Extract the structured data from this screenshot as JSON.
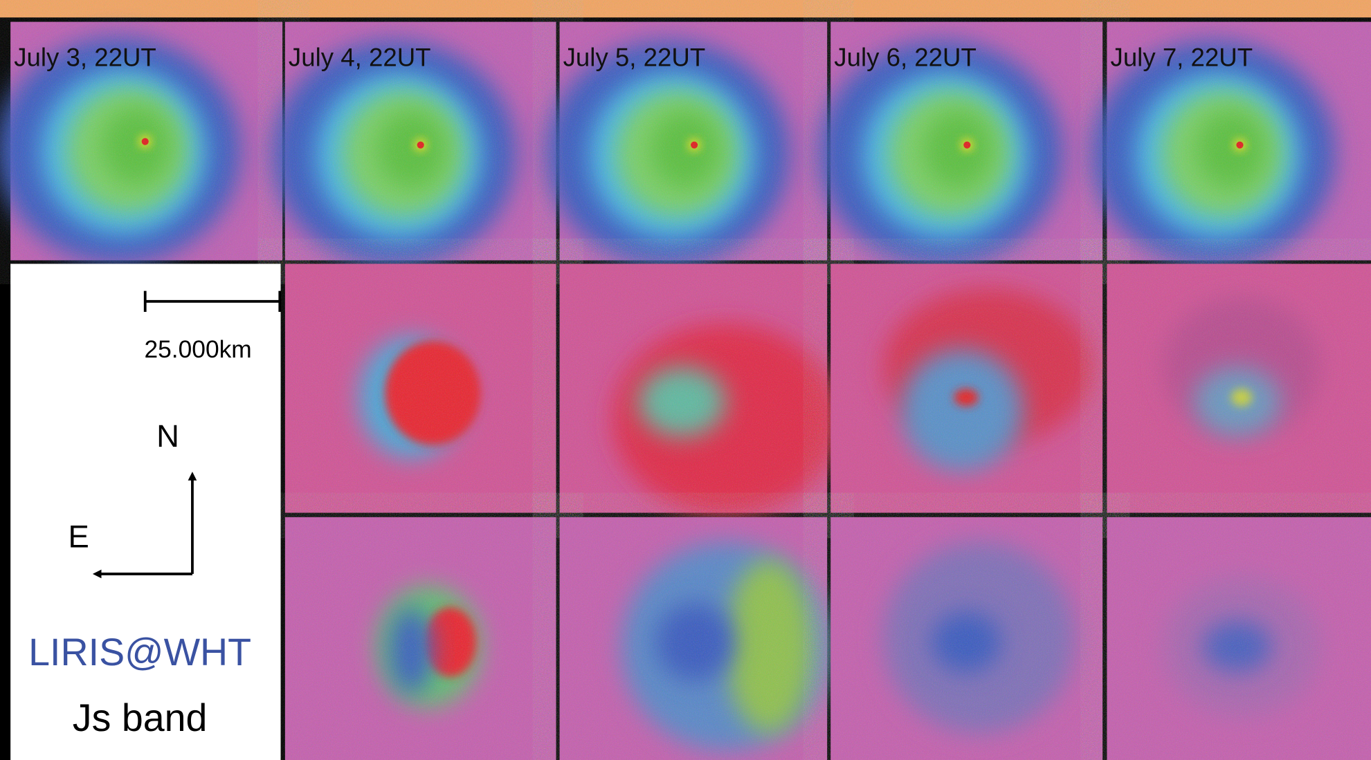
{
  "panels": {
    "dates": [
      "July 3, 22UT",
      "July 4, 22UT",
      "July 5, 22UT",
      "July 6, 22UT",
      "July 7, 22UT"
    ]
  },
  "legend": {
    "scale": "25.000km",
    "north": "N",
    "east": "E",
    "instrument": "LIRIS@WHT",
    "band": "Js band"
  }
}
